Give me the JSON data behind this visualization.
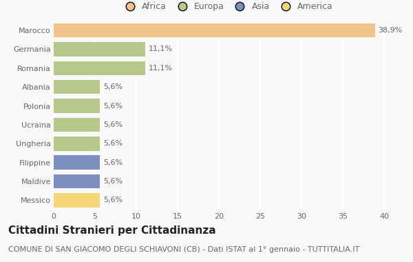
{
  "categories": [
    "Marocco",
    "Germania",
    "Romania",
    "Albania",
    "Polonia",
    "Ucraina",
    "Ungheria",
    "Filippine",
    "Maldive",
    "Messico"
  ],
  "values": [
    38.9,
    11.1,
    11.1,
    5.6,
    5.6,
    5.6,
    5.6,
    5.6,
    5.6,
    5.6
  ],
  "labels": [
    "38,9%",
    "11,1%",
    "11,1%",
    "5,6%",
    "5,6%",
    "5,6%",
    "5,6%",
    "5,6%",
    "5,6%",
    "5,6%"
  ],
  "colors": [
    "#F2C48D",
    "#B5C98B",
    "#B5C98B",
    "#B5C98B",
    "#B5C98B",
    "#B5C98B",
    "#B5C98B",
    "#7B8FC0",
    "#7B8FC0",
    "#F5D57A"
  ],
  "legend_labels": [
    "Africa",
    "Europa",
    "Asia",
    "America"
  ],
  "legend_colors": [
    "#F2C48D",
    "#B5C98B",
    "#7B8FC0",
    "#F5D57A"
  ],
  "title": "Cittadini Stranieri per Cittadinanza",
  "subtitle": "COMUNE DI SAN GIACOMO DEGLI SCHIAVONI (CB) - Dati ISTAT al 1° gennaio - TUTTITALIA.IT",
  "xlim": [
    0,
    42
  ],
  "xticks": [
    0,
    5,
    10,
    15,
    20,
    25,
    30,
    35,
    40
  ],
  "background_color": "#f9f9f9",
  "grid_color": "#ffffff",
  "title_fontsize": 11,
  "subtitle_fontsize": 8,
  "label_fontsize": 8,
  "tick_fontsize": 8,
  "legend_fontsize": 9
}
